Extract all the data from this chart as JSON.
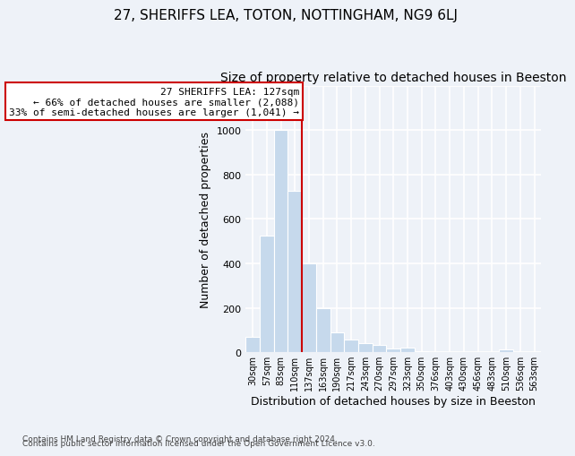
{
  "title": "27, SHERIFFS LEA, TOTON, NOTTINGHAM, NG9 6LJ",
  "subtitle": "Size of property relative to detached houses in Beeston",
  "xlabel": "Distribution of detached houses by size in Beeston",
  "ylabel": "Number of detached properties",
  "bar_labels": [
    "30sqm",
    "57sqm",
    "83sqm",
    "110sqm",
    "137sqm",
    "163sqm",
    "190sqm",
    "217sqm",
    "243sqm",
    "270sqm",
    "297sqm",
    "323sqm",
    "350sqm",
    "376sqm",
    "403sqm",
    "430sqm",
    "456sqm",
    "483sqm",
    "510sqm",
    "536sqm",
    "563sqm"
  ],
  "bar_values": [
    70,
    525,
    1000,
    725,
    400,
    197,
    90,
    58,
    42,
    32,
    18,
    20,
    5,
    0,
    0,
    0,
    0,
    0,
    12,
    0,
    0
  ],
  "bar_color": "#c6d9ec",
  "vline_color": "#cc0000",
  "vline_index": 3.5,
  "box_text_line1": "27 SHERIFFS LEA: 127sqm",
  "box_text_line2": "← 66% of detached houses are smaller (2,088)",
  "box_text_line3": "33% of semi-detached houses are larger (1,041) →",
  "box_color": "white",
  "box_edge_color": "#cc0000",
  "ylim": [
    0,
    1200
  ],
  "yticks": [
    0,
    200,
    400,
    600,
    800,
    1000,
    1200
  ],
  "footnote_line1": "Contains HM Land Registry data © Crown copyright and database right 2024.",
  "footnote_line2": "Contains public sector information licensed under the Open Government Licence v3.0.",
  "background_color": "#eef2f8",
  "title_fontsize": 11,
  "subtitle_fontsize": 10
}
